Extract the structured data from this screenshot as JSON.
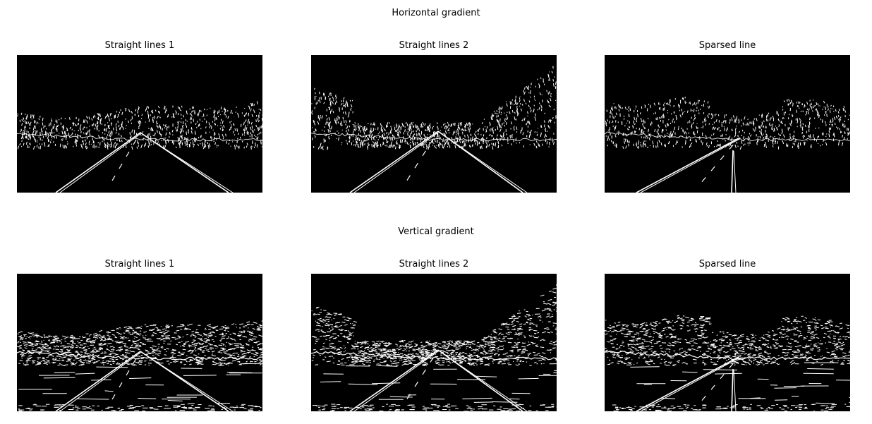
{
  "rows": [
    {
      "title": "Horizontal gradient",
      "panels": [
        {
          "title": "Straight lines 1"
        },
        {
          "title": "Straight lines 2"
        },
        {
          "title": "Sparsed line"
        }
      ]
    },
    {
      "title": "Vertical gradient",
      "panels": [
        {
          "title": "Straight lines 1"
        },
        {
          "title": "Straight lines 2"
        },
        {
          "title": "Sparsed line"
        }
      ]
    }
  ],
  "colors": {
    "background": "#ffffff",
    "image_background": "#000000",
    "edge_pixels": "#ffffff",
    "text": "#000000"
  }
}
